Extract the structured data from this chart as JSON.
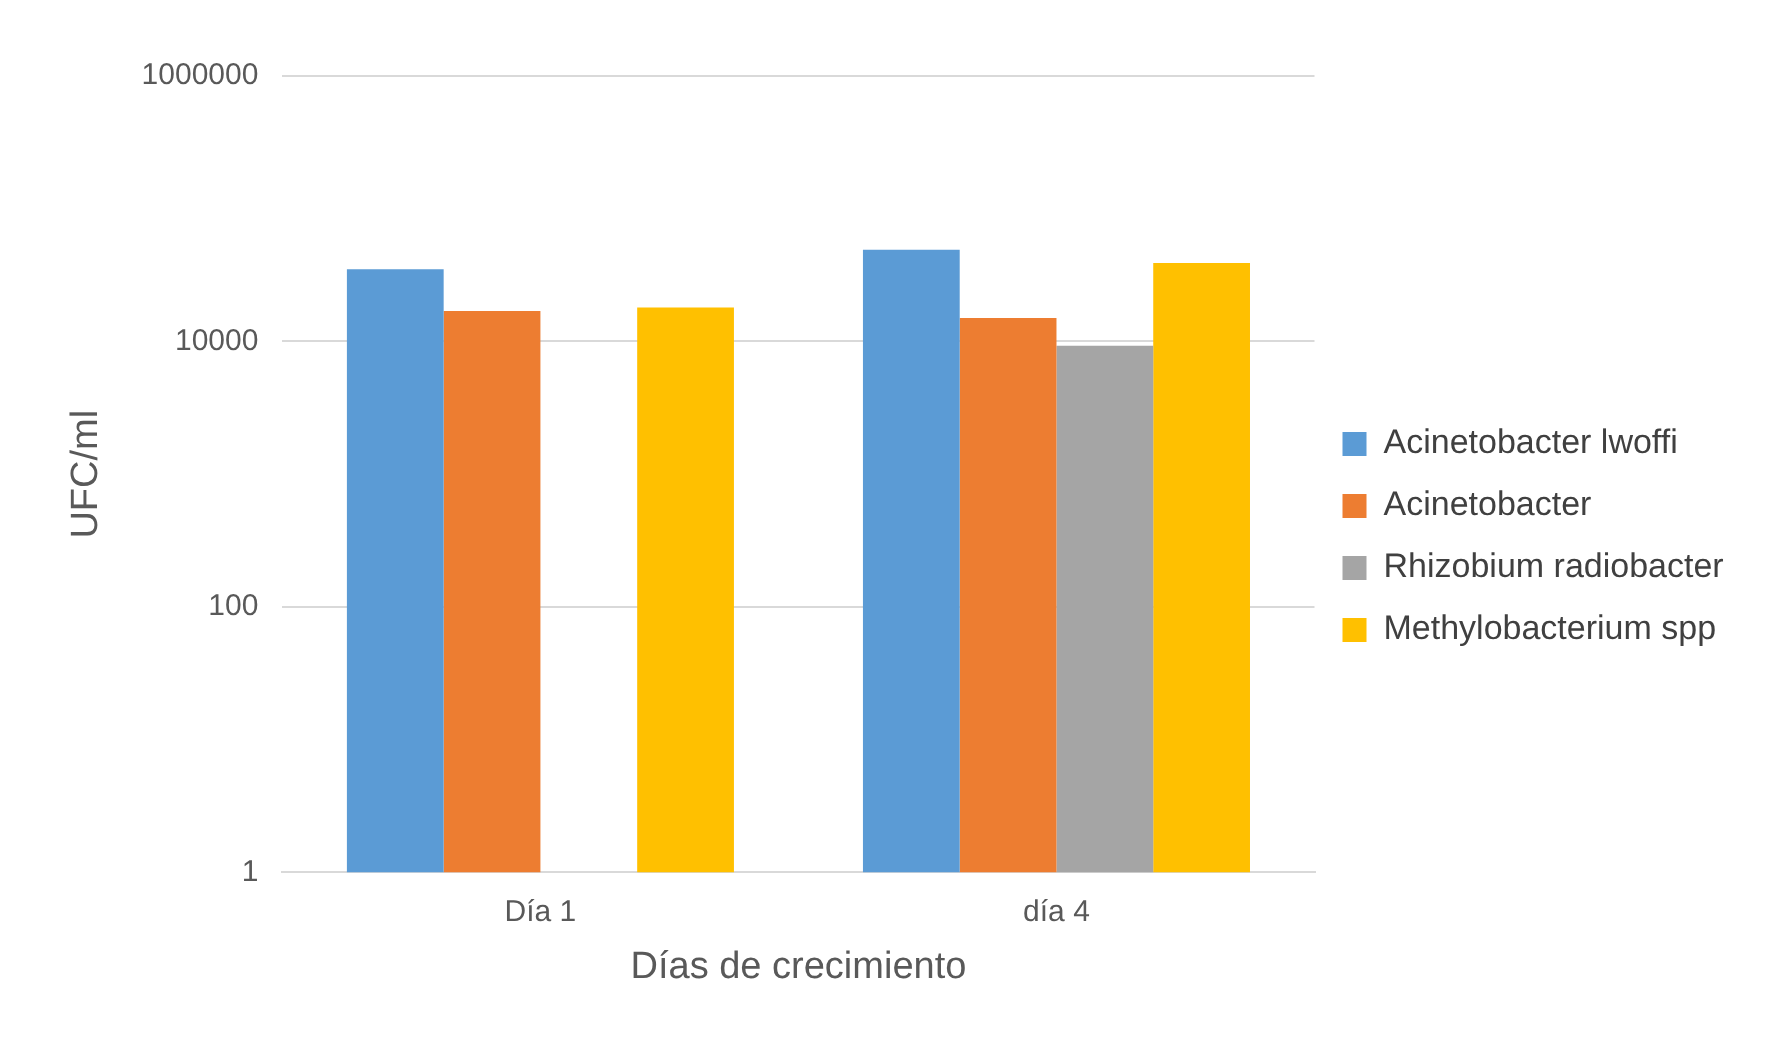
{
  "chart_data": {
    "type": "bar",
    "xlabel": "Días de crecimiento",
    "ylabel": "UFC/ml",
    "categories": [
      "Día 1",
      "día 4"
    ],
    "series": [
      {
        "name": "Acinetobacter lwoffi",
        "color": "#5b9bd5",
        "values": [
          35000,
          49000
        ]
      },
      {
        "name": "Acinetobacter",
        "color": "#ed7d31",
        "values": [
          17000,
          15000
        ]
      },
      {
        "name": "Rhizobium radiobacter",
        "color": "#a5a5a5",
        "values": [
          null,
          9300
        ]
      },
      {
        "name": "Methylobacterium spp",
        "color": "#ffc000",
        "values": [
          18000,
          39000
        ]
      }
    ],
    "log": "y",
    "ylim": [
      1,
      1000000
    ],
    "yticks": [
      1,
      100,
      10000,
      1000000
    ],
    "grid": "y",
    "legend": "right"
  }
}
